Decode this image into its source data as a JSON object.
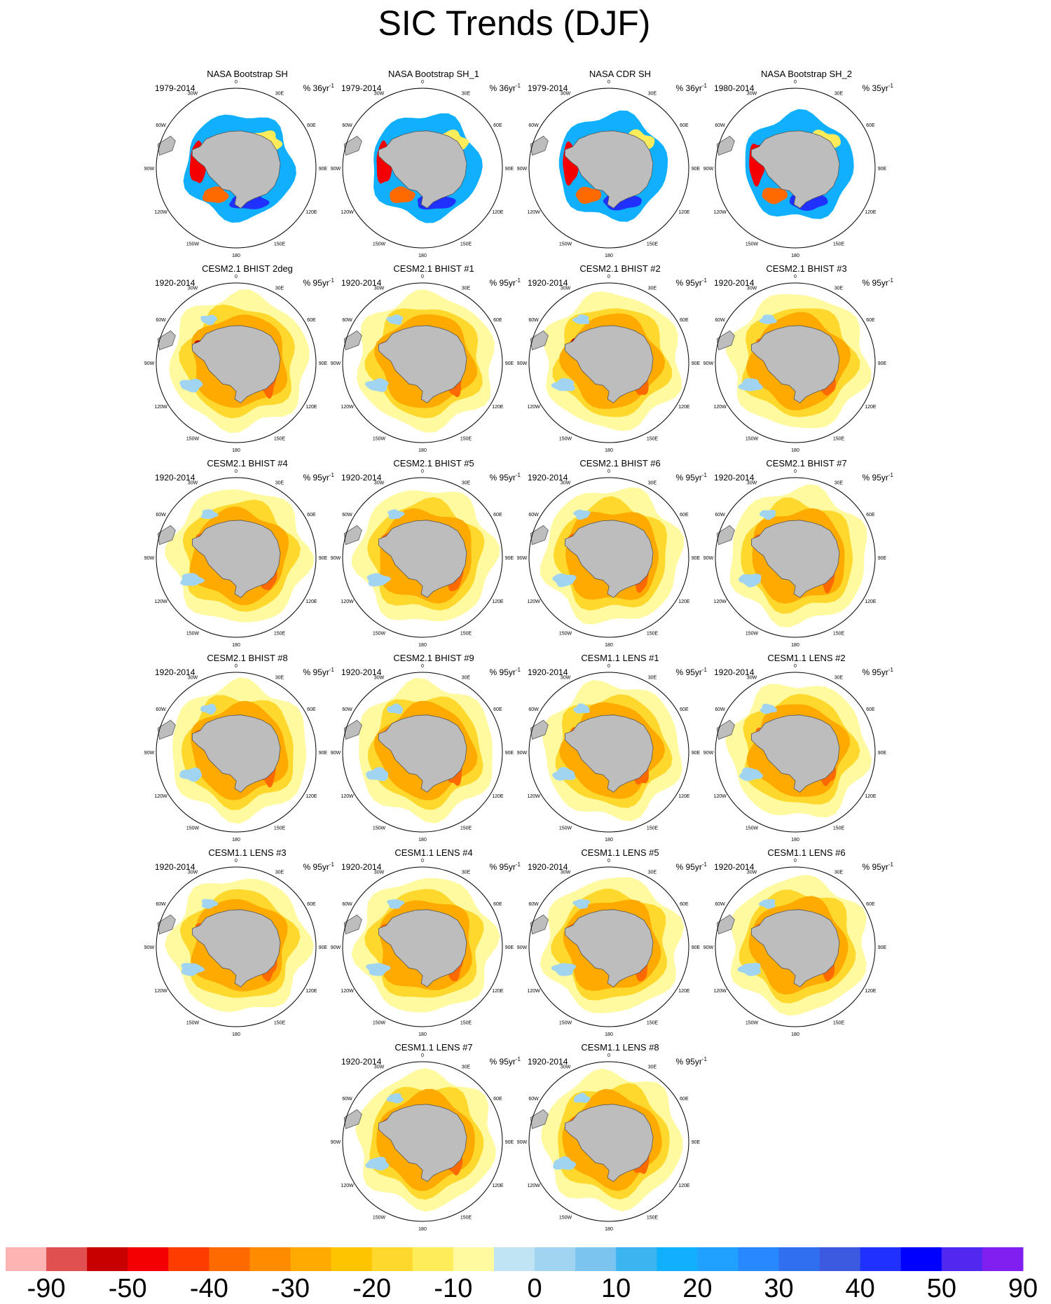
{
  "title": "SIC Trends (DJF)",
  "panels": [
    {
      "title": "NASA Bootstrap SH",
      "years": "1979-2014",
      "units_pct": "%",
      "units_val": "36yr",
      "units_exp": "-1",
      "variant": "obs"
    },
    {
      "title": "NASA Bootstrap SH_1",
      "years": "1979-2014",
      "units_pct": "%",
      "units_val": "36yr",
      "units_exp": "-1",
      "variant": "obs"
    },
    {
      "title": "NASA CDR SH",
      "years": "1979-2014",
      "units_pct": "%",
      "units_val": "36yr",
      "units_exp": "-1",
      "variant": "obs"
    },
    {
      "title": "NASA Bootstrap SH_2",
      "years": "1980-2014",
      "units_pct": "%",
      "units_val": "35yr",
      "units_exp": "-1",
      "variant": "obs"
    },
    {
      "title": "CESM2.1 BHIST 2deg",
      "years": "1920-2014",
      "units_pct": "%",
      "units_val": "95yr",
      "units_exp": "-1",
      "variant": "model_strong"
    },
    {
      "title": "CESM2.1 BHIST #1",
      "years": "1920-2014",
      "units_pct": "%",
      "units_val": "95yr",
      "units_exp": "-1",
      "variant": "model"
    },
    {
      "title": "CESM2.1 BHIST #2",
      "years": "1920-2014",
      "units_pct": "%",
      "units_val": "95yr",
      "units_exp": "-1",
      "variant": "model_strong"
    },
    {
      "title": "CESM2.1 BHIST #3",
      "years": "1920-2014",
      "units_pct": "%",
      "units_val": "95yr",
      "units_exp": "-1",
      "variant": "model"
    },
    {
      "title": "CESM2.1 BHIST #4",
      "years": "1920-2014",
      "units_pct": "%",
      "units_val": "95yr",
      "units_exp": "-1",
      "variant": "model"
    },
    {
      "title": "CESM2.1 BHIST #5",
      "years": "1920-2014",
      "units_pct": "%",
      "units_val": "95yr",
      "units_exp": "-1",
      "variant": "model"
    },
    {
      "title": "CESM2.1 BHIST #6",
      "years": "1920-2014",
      "units_pct": "%",
      "units_val": "95yr",
      "units_exp": "-1",
      "variant": "model"
    },
    {
      "title": "CESM2.1 BHIST #7",
      "years": "1920-2014",
      "units_pct": "%",
      "units_val": "95yr",
      "units_exp": "-1",
      "variant": "model"
    },
    {
      "title": "CESM2.1 BHIST #8",
      "years": "1920-2014",
      "units_pct": "%",
      "units_val": "95yr",
      "units_exp": "-1",
      "variant": "model"
    },
    {
      "title": "CESM2.1 BHIST #9",
      "years": "1920-2014",
      "units_pct": "%",
      "units_val": "95yr",
      "units_exp": "-1",
      "variant": "model"
    },
    {
      "title": "CESM1.1 LENS #1",
      "years": "1920-2014",
      "units_pct": "%",
      "units_val": "95yr",
      "units_exp": "-1",
      "variant": "model"
    },
    {
      "title": "CESM1.1 LENS #2",
      "years": "1920-2014",
      "units_pct": "%",
      "units_val": "95yr",
      "units_exp": "-1",
      "variant": "model"
    },
    {
      "title": "CESM1.1 LENS #3",
      "years": "1920-2014",
      "units_pct": "%",
      "units_val": "95yr",
      "units_exp": "-1",
      "variant": "model"
    },
    {
      "title": "CESM1.1 LENS #4",
      "years": "1920-2014",
      "units_pct": "%",
      "units_val": "95yr",
      "units_exp": "-1",
      "variant": "model"
    },
    {
      "title": "CESM1.1 LENS #5",
      "years": "1920-2014",
      "units_pct": "%",
      "units_val": "95yr",
      "units_exp": "-1",
      "variant": "model"
    },
    {
      "title": "CESM1.1 LENS #6",
      "years": "1920-2014",
      "units_pct": "%",
      "units_val": "95yr",
      "units_exp": "-1",
      "variant": "model"
    },
    {
      "title": "CESM1.1 LENS #7",
      "years": "1920-2014",
      "units_pct": "%",
      "units_val": "95yr",
      "units_exp": "-1",
      "variant": "model"
    },
    {
      "title": "CESM1.1 LENS #8",
      "years": "1920-2014",
      "units_pct": "%",
      "units_val": "95yr",
      "units_exp": "-1",
      "variant": "model"
    }
  ],
  "map_labels": {
    "lon": [
      "0",
      "30E",
      "60E",
      "90E",
      "120E",
      "150E",
      "180",
      "150W",
      "120W",
      "90W",
      "60W",
      "30W"
    ]
  },
  "colors": {
    "land": "#bdbdbd",
    "coast": "#555555",
    "ring": "#000000"
  },
  "colorbar": {
    "colors": [
      "#ffb4b4",
      "#e05050",
      "#c80000",
      "#f50000",
      "#ff3c00",
      "#ff6a00",
      "#ff8c00",
      "#ffaa00",
      "#ffc400",
      "#ffd82e",
      "#ffec5a",
      "#fff9a0",
      "#c0e4f4",
      "#a0d4f0",
      "#7cc4f0",
      "#3cb4f0",
      "#10b0ff",
      "#20a0ff",
      "#2888ff",
      "#3070f0",
      "#3c5ae0",
      "#2030ff",
      "#0000ff",
      "#5028f0",
      "#8020f0"
    ],
    "labels": [
      "-90",
      "-50",
      "-40",
      "-30",
      "-20",
      "-10",
      "0",
      "10",
      "20",
      "30",
      "40",
      "50",
      "90"
    ]
  }
}
